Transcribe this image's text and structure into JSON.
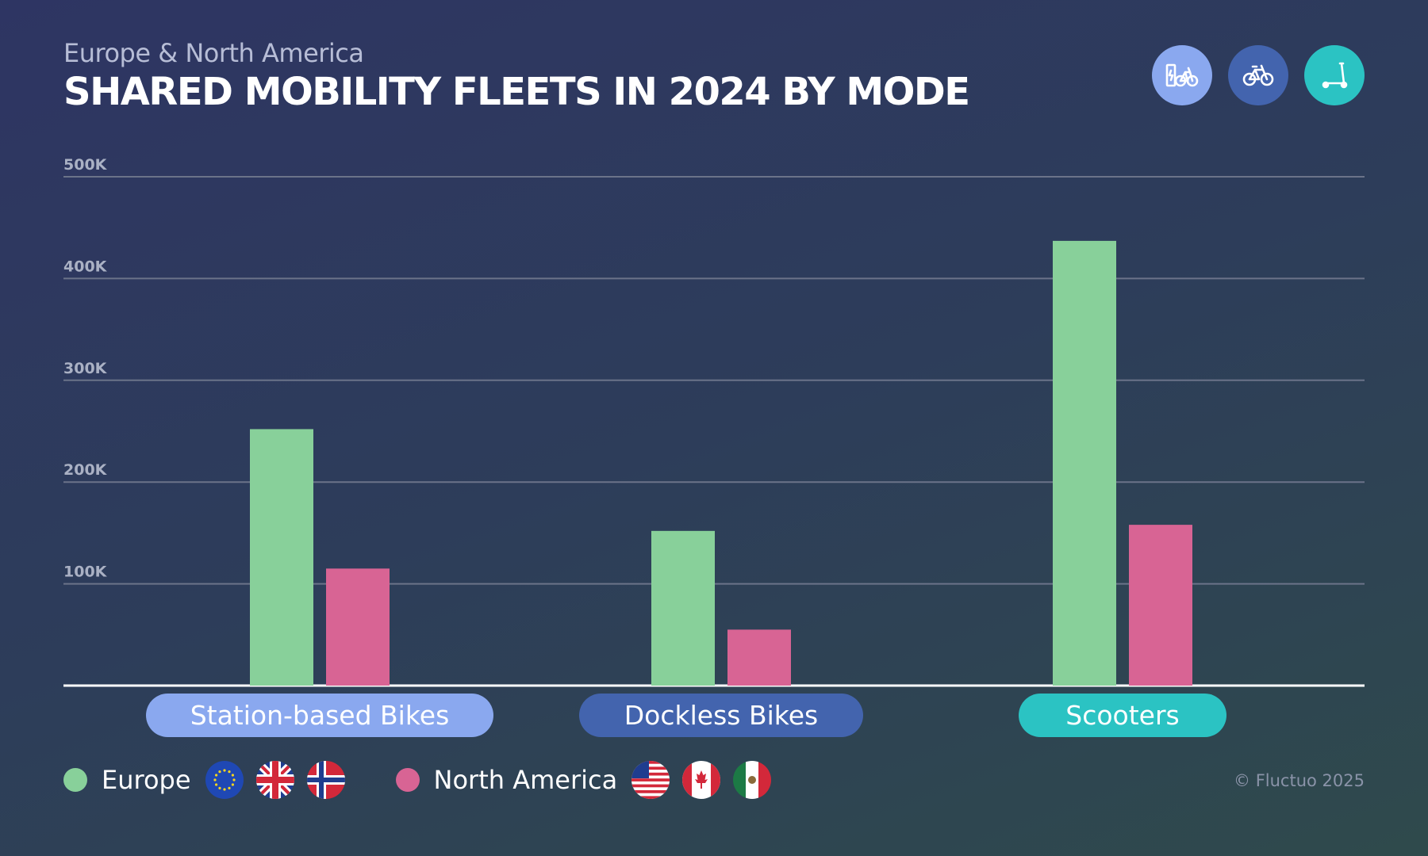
{
  "header": {
    "subtitle": "Europe & North America",
    "title": "SHARED MOBILITY FLEETS IN 2024 BY MODE"
  },
  "mode_icons": [
    {
      "name": "station-bike-icon",
      "color": "#8aa8ef"
    },
    {
      "name": "bike-icon",
      "color": "#4364ae"
    },
    {
      "name": "scooter-icon",
      "color": "#2bc3c3"
    }
  ],
  "chart_data": {
    "type": "bar",
    "categories": [
      "Station-based Bikes",
      "Dockless Bikes",
      "Scooters"
    ],
    "category_colors": [
      "#8aa8ef",
      "#4364ae",
      "#2bc3c3"
    ],
    "series": [
      {
        "name": "Europe",
        "color": "#88d09a",
        "values": [
          252000,
          152000,
          437000
        ]
      },
      {
        "name": "North America",
        "color": "#d86494",
        "values": [
          115000,
          55000,
          158000
        ]
      }
    ],
    "ylim": [
      0,
      500000
    ],
    "yticks": [
      100000,
      200000,
      300000,
      400000,
      500000
    ],
    "ytick_labels": [
      "100K",
      "200K",
      "300K",
      "400K",
      "500K"
    ],
    "grid": true,
    "legend": "bottom-left"
  },
  "legend": {
    "europe_label": "Europe",
    "north_america_label": "North America",
    "europe_flags": [
      "eu-flag-icon",
      "uk-flag-icon",
      "norway-flag-icon"
    ],
    "north_america_flags": [
      "usa-flag-icon",
      "canada-flag-icon",
      "mexico-flag-icon"
    ]
  },
  "footer": {
    "copyright": "© Fluctuo 2025"
  }
}
